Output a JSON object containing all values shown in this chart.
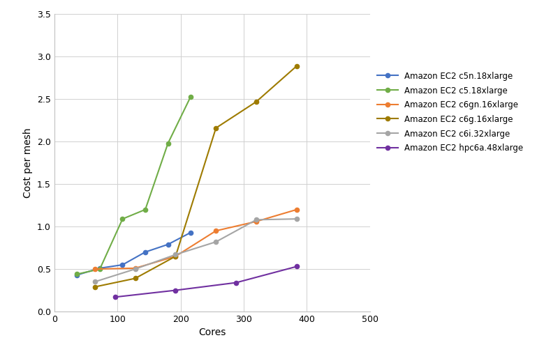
{
  "series": [
    {
      "label": "Amazon EC2 c5n.18xlarge",
      "color": "#4472C4",
      "marker": "o",
      "x": [
        36,
        72,
        108,
        144,
        180,
        216
      ],
      "y": [
        0.43,
        0.51,
        0.55,
        0.7,
        0.79,
        0.93
      ]
    },
    {
      "label": "Amazon EC2 c5.18xlarge",
      "color": "#70AD47",
      "marker": "o",
      "x": [
        36,
        72,
        108,
        144,
        180,
        216
      ],
      "y": [
        0.44,
        0.5,
        1.09,
        1.2,
        1.98,
        2.53
      ]
    },
    {
      "label": "Amazon EC2 c6gn.16xlarge",
      "color": "#ED7D31",
      "marker": "o",
      "x": [
        64,
        128,
        192,
        256,
        320,
        384
      ],
      "y": [
        0.5,
        0.51,
        0.65,
        0.95,
        1.06,
        1.2
      ]
    },
    {
      "label": "Amazon EC2 c6g.16xlarge",
      "color": "#9E7B00",
      "marker": "o",
      "x": [
        64,
        128,
        192,
        256,
        320,
        384
      ],
      "y": [
        0.29,
        0.39,
        0.65,
        2.16,
        2.47,
        2.89
      ]
    },
    {
      "label": "Amazon EC2 c6i.32xlarge",
      "color": "#A5A5A5",
      "marker": "o",
      "x": [
        64,
        128,
        192,
        256,
        320,
        384
      ],
      "y": [
        0.35,
        0.5,
        0.67,
        0.82,
        1.08,
        1.09
      ]
    },
    {
      "label": "Amazon EC2 hpc6a.48xlarge",
      "color": "#7030A0",
      "marker": "o",
      "x": [
        96,
        192,
        288,
        384
      ],
      "y": [
        0.17,
        0.25,
        0.34,
        0.53
      ]
    }
  ],
  "xlabel": "Cores",
  "ylabel": "Cost per mesh",
  "xlim": [
    0,
    500
  ],
  "ylim": [
    0,
    3.5
  ],
  "xticks": [
    0,
    100,
    200,
    300,
    400,
    500
  ],
  "yticks": [
    0,
    0.5,
    1.0,
    1.5,
    2.0,
    2.5,
    3.0,
    3.5
  ],
  "grid": true,
  "background_color": "#ffffff"
}
